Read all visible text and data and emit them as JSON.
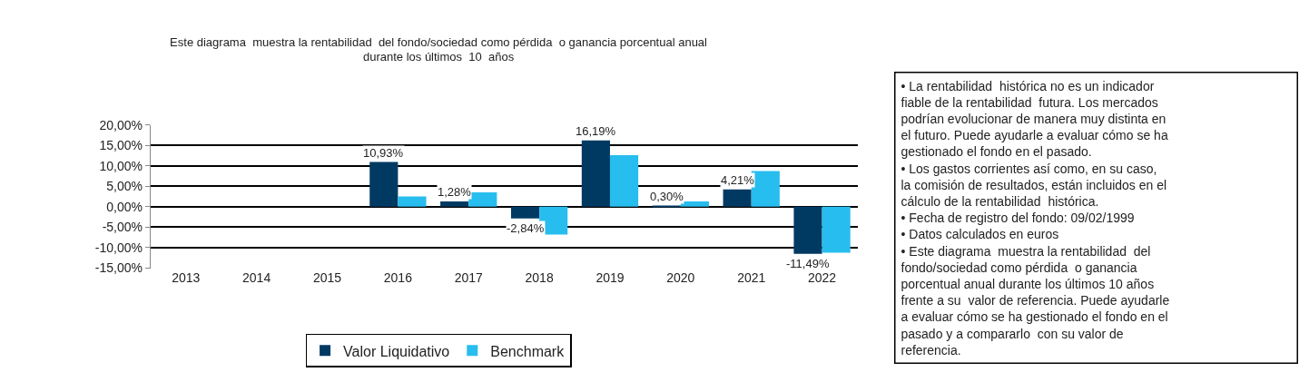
{
  "chart_data": {
    "type": "bar",
    "title": "Este diagrama  muestra la rentabilidad  del fondo/sociedad como pérdida  o ganancia porcentual anual\ndurante los últimos  10  años",
    "categories": [
      "2013",
      "2014",
      "2015",
      "2016",
      "2017",
      "2018",
      "2019",
      "2020",
      "2021",
      "2022"
    ],
    "series": [
      {
        "name": "Valor Liquidativo",
        "color": "#003a63",
        "values": [
          null,
          null,
          null,
          10.93,
          1.28,
          -2.84,
          16.19,
          0.3,
          4.21,
          -11.49
        ],
        "value_labels": [
          null,
          null,
          null,
          "10,93%",
          "1,28%",
          "-2,84%",
          "16,19%",
          "0,30%",
          "4,21%",
          "-11,49%"
        ]
      },
      {
        "name": "Benchmark",
        "color": "#27bdee",
        "values": [
          null,
          null,
          null,
          2.5,
          3.5,
          -6.8,
          12.6,
          1.3,
          8.7,
          -11.2
        ]
      }
    ],
    "ylim": [
      -15,
      20
    ],
    "yticks": [
      {
        "value": 20,
        "label": "20,00%"
      },
      {
        "value": 15,
        "label": "15,00%"
      },
      {
        "value": 10,
        "label": "10,00%"
      },
      {
        "value": 5,
        "label": "5,00%"
      },
      {
        "value": 0,
        "label": "0,00%"
      },
      {
        "value": -5,
        "label": "-5,00%"
      },
      {
        "value": -10,
        "label": "-10,00%"
      },
      {
        "value": -15,
        "label": "-15,00%"
      }
    ],
    "grid": "y",
    "legend": "bottom",
    "annotations": [
      "• La rentabilidad  histórica no es un indicador\nfiable de la rentabilidad  futura. Los mercados\npodrían evolucionar de manera muy distinta en\nel futuro. Puede ayudarle a evaluar cómo se ha\ngestionado el fondo en el pasado.\n• Los gastos corrientes así como, en su caso,\nla comisión de resultados, están incluidos en el\ncálculo de la rentabilidad  histórica.\n• Fecha de registro del fondo: 09/02/1999\n• Datos calculados en euros\n• Este diagrama  muestra la rentabilidad  del\nfondo/sociedad como pérdida  o ganancia\nporcentual anual durante los últimos 10 años\nfrente a su  valor de referencia. Puede ayudarle\na evaluar cómo se ha gestionado el fondo en el\npasado y a compararlo  con su valor de\nreferencia."
    ]
  }
}
